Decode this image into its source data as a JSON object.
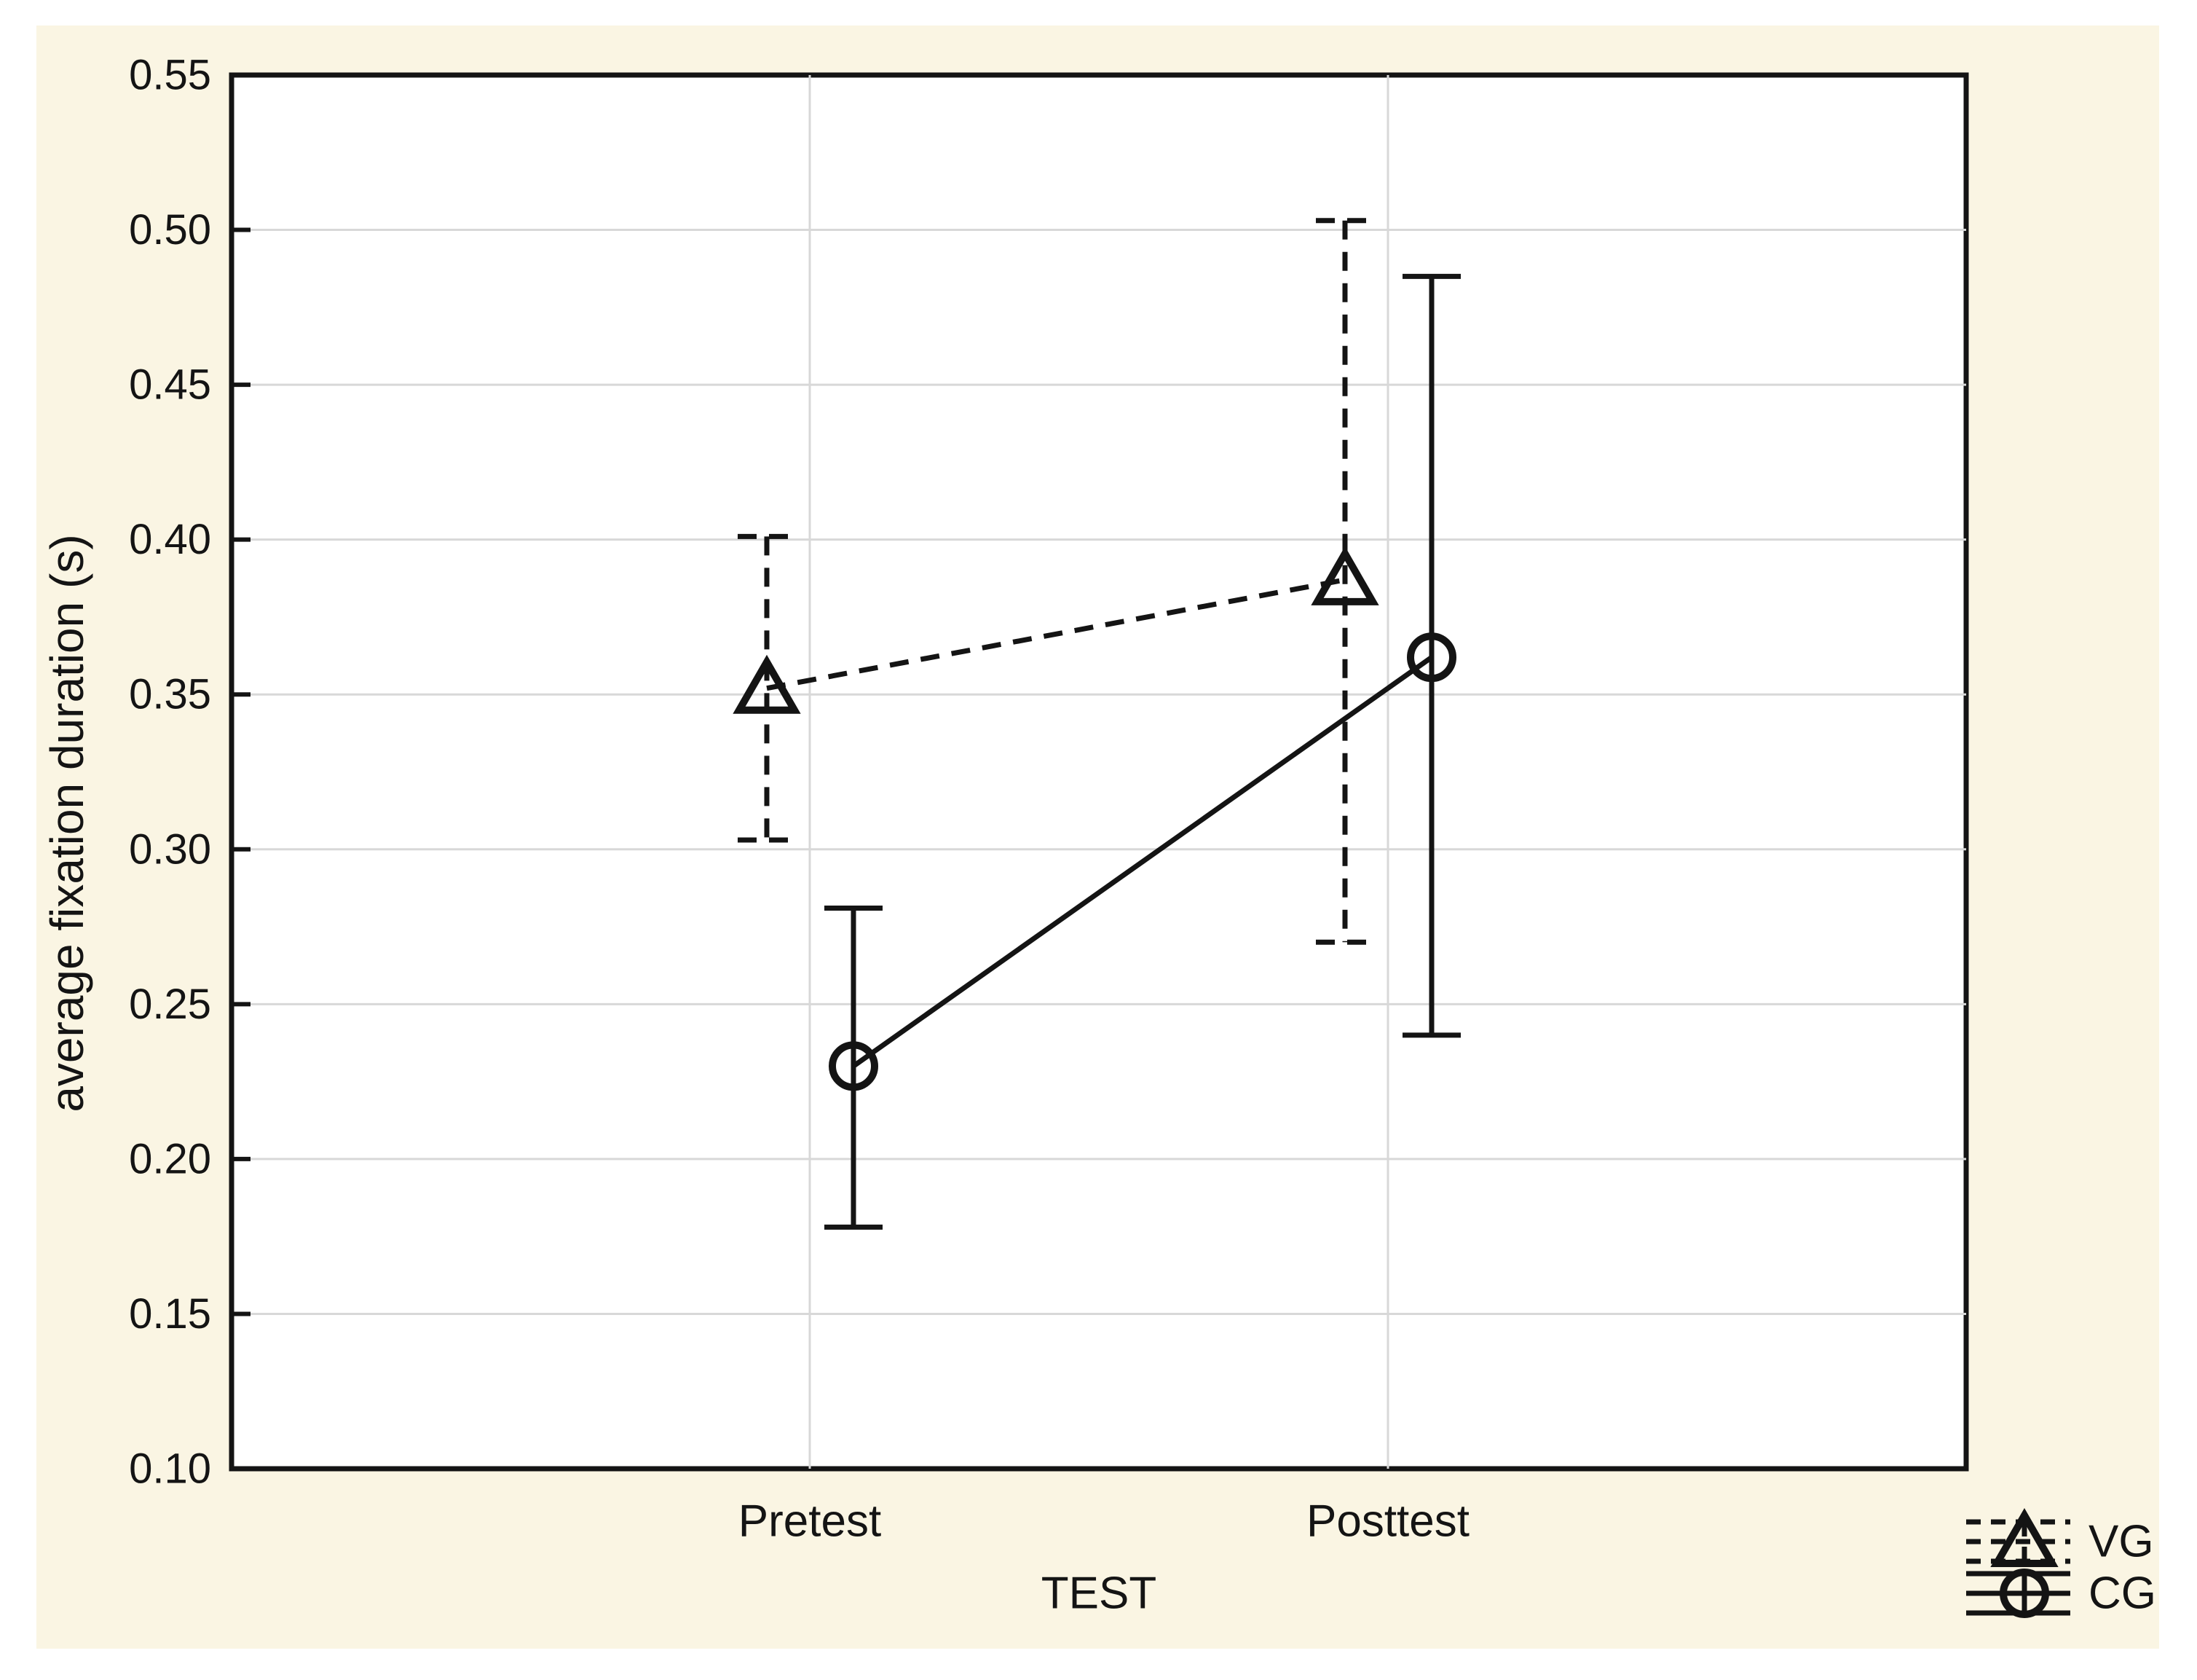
{
  "page": {
    "background_color": "#ffffff",
    "panel_color": "#FAF5E3"
  },
  "chart_data": {
    "type": "line",
    "title": "",
    "xlabel": "TEST",
    "ylabel": "average fixation duration (s)",
    "categories": [
      "Pretest",
      "Posttest"
    ],
    "ylim": [
      0.1,
      0.55
    ],
    "ytick_step": 0.05,
    "ytick_labels": [
      "0.55",
      "0.50",
      "0.45",
      "0.40",
      "0.35",
      "0.30",
      "0.25",
      "0.20",
      "0.15",
      "0.10"
    ],
    "grid": {
      "horizontal": true,
      "vertical_at_categories": true,
      "color": "#D8D8D8"
    },
    "legend": {
      "position": "bottom-right",
      "entries": [
        {
          "label": "VG",
          "marker": "triangle",
          "line_style": "dashed"
        },
        {
          "label": "CG",
          "marker": "circle",
          "line_style": "solid"
        }
      ]
    },
    "series": [
      {
        "name": "VG",
        "marker": "triangle",
        "line_style": "dashed",
        "values": [
          0.352,
          0.387
        ],
        "error_low": [
          0.303,
          0.27
        ],
        "error_high": [
          0.401,
          0.503
        ]
      },
      {
        "name": "CG",
        "marker": "circle",
        "line_style": "solid",
        "values": [
          0.23,
          0.362
        ],
        "error_low": [
          0.178,
          0.24
        ],
        "error_high": [
          0.281,
          0.485
        ]
      }
    ],
    "colors": {
      "line": "#141414",
      "frame": "#141414",
      "plot_background": "#ffffff",
      "grid": "#D8D8D8"
    }
  }
}
